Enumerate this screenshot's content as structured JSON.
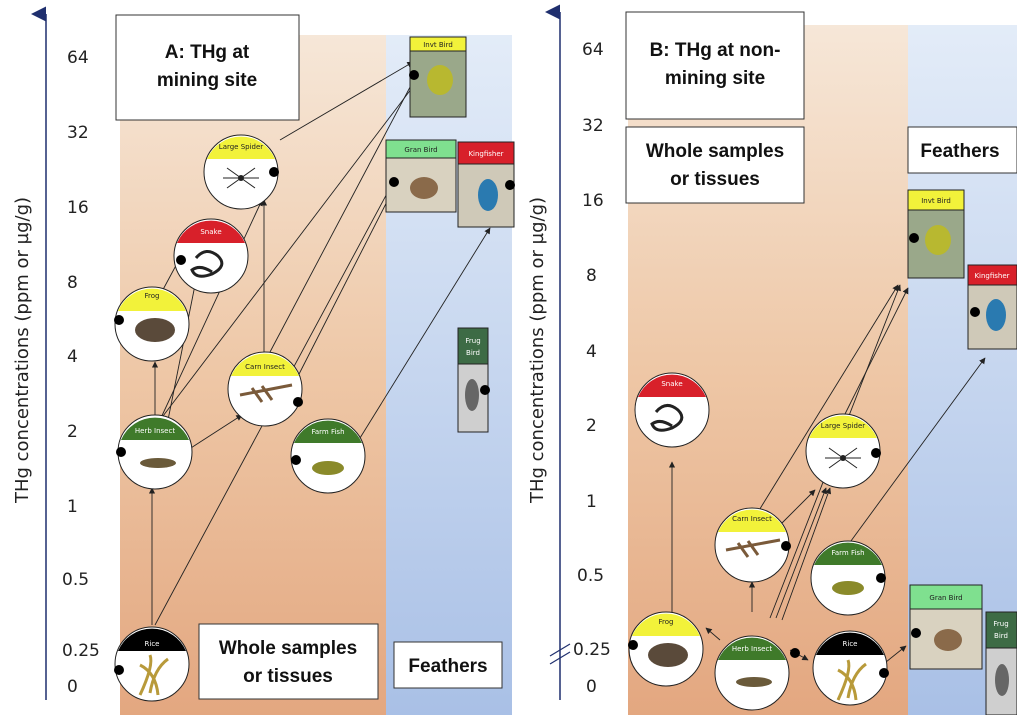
{
  "panel_a": {
    "title_line1": "A: THg at",
    "title_line2": "mining site",
    "whole_line1": "Whole samples",
    "whole_line2": "or tissues",
    "feathers": "Feathers"
  },
  "panel_b": {
    "title_line1": "B: THg at non-",
    "title_line2": "mining site",
    "whole_line1": "Whole samples",
    "whole_line2": "or tissues",
    "feathers": "Feathers"
  },
  "axis": {
    "label": "THg concentrations (ppm or µg/g)",
    "ticks": [
      "64",
      "32",
      "16",
      "8",
      "4",
      "2",
      "1",
      "0.5",
      "0.25",
      "0"
    ]
  },
  "species": {
    "rice": "Rice",
    "herb_insect": "Herb Insect",
    "frog": "Frog",
    "snake": "Snake",
    "carn_insect": "Carn Insect",
    "large_spider": "Large Spider",
    "farm_fish": "Farm Fish",
    "invt_bird": "Invt Bird",
    "gran_bird": "Gran Bird",
    "kingfisher": "Kingfisher",
    "frug_bird_1": "Frug",
    "frug_bird_2": "Bird"
  },
  "colors": {
    "yellow": "#f2f23a",
    "red": "#d8202a",
    "green": "#3f7a2a",
    "light_green": "#7fe08f",
    "dark_green": "#3d6b45",
    "black": "#000000",
    "axis_blue": "#1f2f6e"
  }
}
